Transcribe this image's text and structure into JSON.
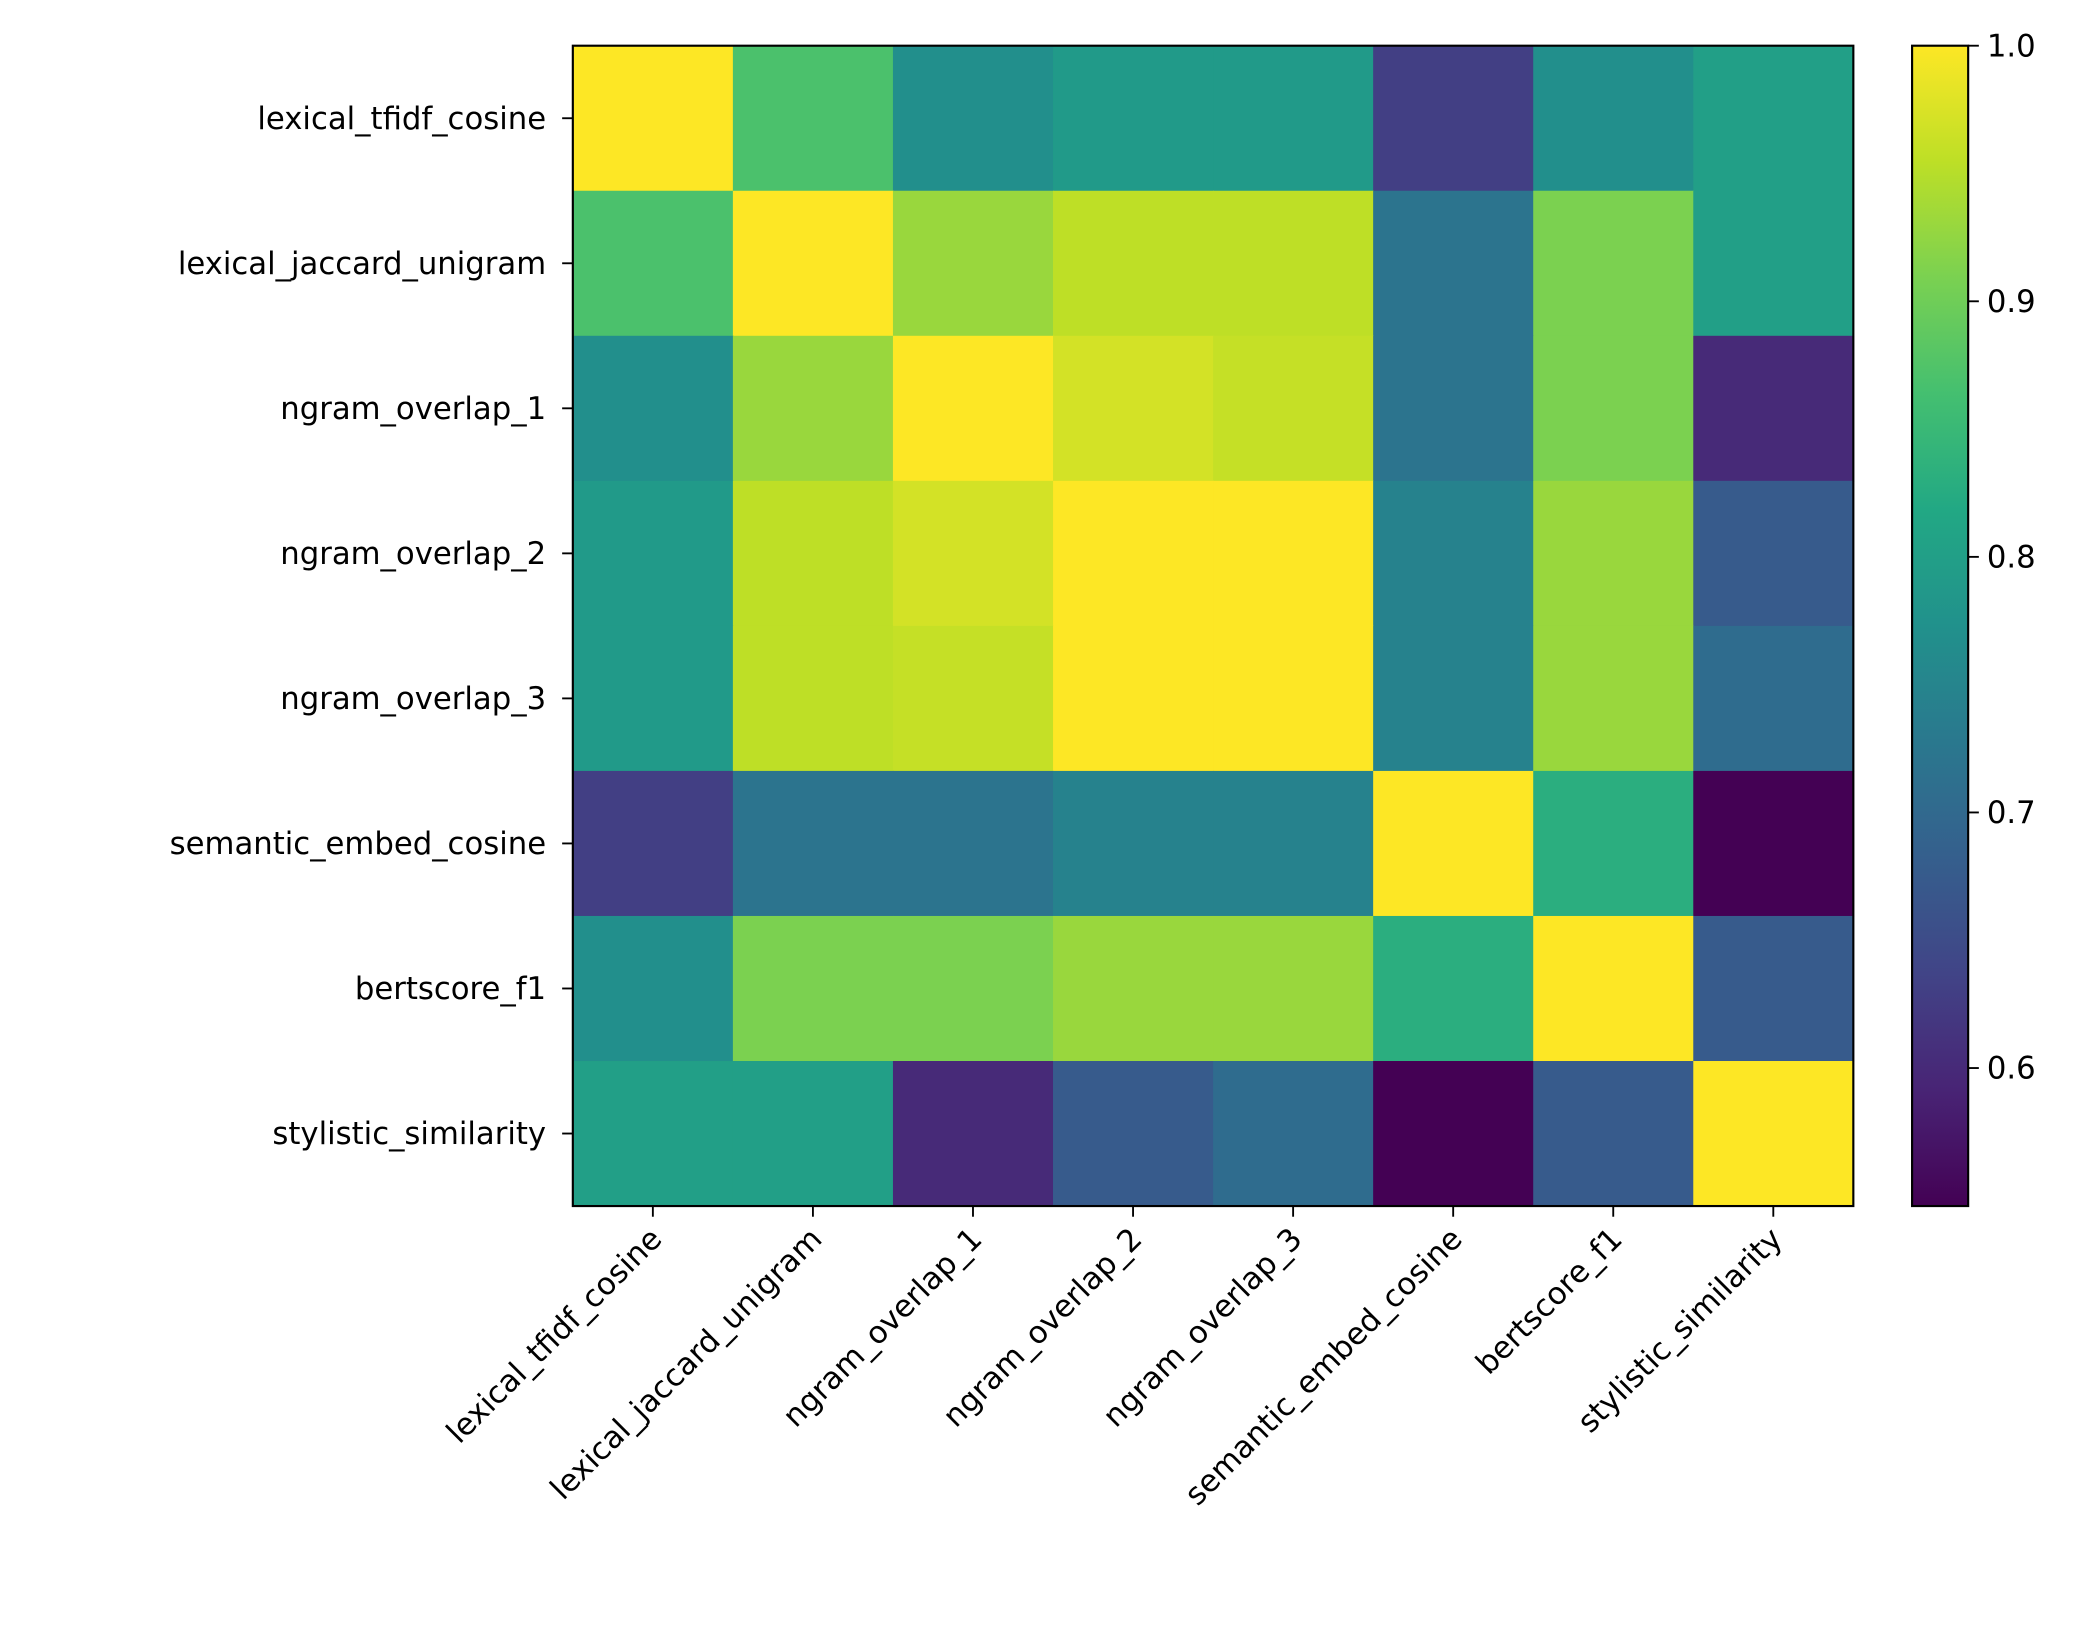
{
  "chart_data": {
    "type": "heatmap",
    "title": "",
    "xlabel": "",
    "ylabel": "",
    "colormap": "viridis",
    "categories": [
      "lexical_tfidf_cosine",
      "lexical_jaccard_unigram",
      "ngram_overlap_1",
      "ngram_overlap_2",
      "ngram_overlap_3",
      "semantic_embed_cosine",
      "bertscore_f1",
      "stylistic_similarity"
    ],
    "values": [
      [
        1.0,
        0.87,
        0.77,
        0.79,
        0.79,
        0.63,
        0.77,
        0.8
      ],
      [
        0.87,
        1.0,
        0.93,
        0.955,
        0.955,
        0.72,
        0.91,
        0.8
      ],
      [
        0.77,
        0.93,
        1.0,
        0.97,
        0.96,
        0.72,
        0.91,
        0.6
      ],
      [
        0.79,
        0.955,
        0.97,
        1.0,
        1.0,
        0.746,
        0.93,
        0.675
      ],
      [
        0.79,
        0.955,
        0.96,
        1.0,
        1.0,
        0.746,
        0.93,
        0.705
      ],
      [
        0.63,
        0.72,
        0.72,
        0.746,
        0.746,
        1.0,
        0.83,
        0.546
      ],
      [
        0.77,
        0.91,
        0.91,
        0.93,
        0.93,
        0.83,
        1.0,
        0.675
      ],
      [
        0.8,
        0.8,
        0.6,
        0.675,
        0.705,
        0.546,
        0.675,
        1.0
      ]
    ],
    "colorbar": {
      "range": [
        0.546,
        1.0
      ],
      "ticks": [
        0.6,
        0.7,
        0.8,
        0.9,
        1.0
      ],
      "tick_labels": [
        "0.6",
        "0.7",
        "0.8",
        "0.9",
        "1.0"
      ]
    },
    "grid": false
  }
}
